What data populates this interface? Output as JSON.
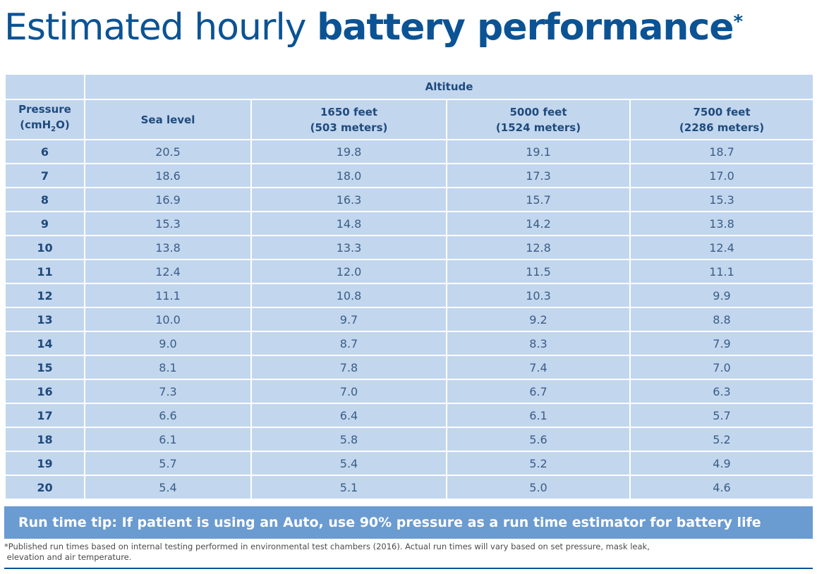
{
  "title": {
    "light": "Estimated hourly ",
    "bold": "battery performance",
    "asterisk": "*"
  },
  "table": {
    "group_header": "Altitude",
    "pressure_header": {
      "line1": "Pressure",
      "line2_prefix": "(cmH",
      "line2_sub": "2",
      "line2_suffix": "O)"
    },
    "columns": [
      {
        "line1": "Sea level",
        "line2": ""
      },
      {
        "line1": "1650 feet",
        "line2": "(503 meters)"
      },
      {
        "line1": "5000 feet",
        "line2": "(1524 meters)"
      },
      {
        "line1": "7500 feet",
        "line2": "(2286 meters)"
      }
    ],
    "rows": [
      {
        "pressure": "6",
        "values": [
          "20.5",
          "19.8",
          "19.1",
          "18.7"
        ]
      },
      {
        "pressure": "7",
        "values": [
          "18.6",
          "18.0",
          "17.3",
          "17.0"
        ]
      },
      {
        "pressure": "8",
        "values": [
          "16.9",
          "16.3",
          "15.7",
          "15.3"
        ]
      },
      {
        "pressure": "9",
        "values": [
          "15.3",
          "14.8",
          "14.2",
          "13.8"
        ]
      },
      {
        "pressure": "10",
        "values": [
          "13.8",
          "13.3",
          "12.8",
          "12.4"
        ]
      },
      {
        "pressure": "11",
        "values": [
          "12.4",
          "12.0",
          "11.5",
          "11.1"
        ]
      },
      {
        "pressure": "12",
        "values": [
          "11.1",
          "10.8",
          "10.3",
          "9.9"
        ]
      },
      {
        "pressure": "13",
        "values": [
          "10.0",
          "9.7",
          "9.2",
          "8.8"
        ]
      },
      {
        "pressure": "14",
        "values": [
          "9.0",
          "8.7",
          "8.3",
          "7.9"
        ]
      },
      {
        "pressure": "15",
        "values": [
          "8.1",
          "7.8",
          "7.4",
          "7.0"
        ]
      },
      {
        "pressure": "16",
        "values": [
          "7.3",
          "7.0",
          "6.7",
          "6.3"
        ]
      },
      {
        "pressure": "17",
        "values": [
          "6.6",
          "6.4",
          "6.1",
          "5.7"
        ]
      },
      {
        "pressure": "18",
        "values": [
          "6.1",
          "5.8",
          "5.6",
          "5.2"
        ]
      },
      {
        "pressure": "19",
        "values": [
          "5.7",
          "5.4",
          "5.2",
          "4.9"
        ]
      },
      {
        "pressure": "20",
        "values": [
          "5.4",
          "5.1",
          "5.0",
          "4.6"
        ]
      }
    ]
  },
  "tip": "Run time tip: If patient is using an Auto, use 90% pressure as a run time estimator for battery life",
  "footnote": {
    "line1": "*Published run times based on internal testing performed in environmental test chambers (2016). Actual run times will vary based on set pressure, mask leak,",
    "line2": "elevation and air temperature."
  },
  "colors": {
    "title": "#0b5394",
    "table_bg": "#c2d6ee",
    "tip_bg": "#6a9bd1"
  }
}
